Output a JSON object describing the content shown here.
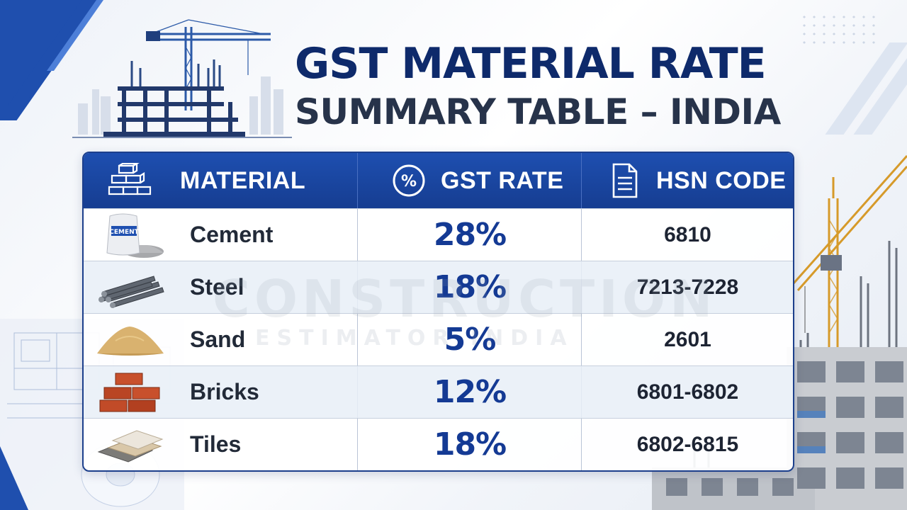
{
  "title": {
    "line1": "GST MATERIAL RATE",
    "line2": "SUMMARY TABLE – INDIA"
  },
  "table": {
    "headers": [
      {
        "label": "MATERIAL",
        "icon": "bricks-stack-icon"
      },
      {
        "label": "GST RATE",
        "icon": "percent-circle-icon"
      },
      {
        "label": "HSN CODE",
        "icon": "document-icon"
      }
    ],
    "rows": [
      {
        "material": "Cement",
        "image": "cement-bag",
        "gst_rate": "28%",
        "hsn_code": "6810"
      },
      {
        "material": "Steel",
        "image": "steel-bars",
        "gst_rate": "18%",
        "hsn_code": "7213-7228"
      },
      {
        "material": "Sand",
        "image": "sand-pile",
        "gst_rate": "5%",
        "hsn_code": "2601"
      },
      {
        "material": "Bricks",
        "image": "bricks",
        "gst_rate": "12%",
        "hsn_code": "6801-6802"
      },
      {
        "material": "Tiles",
        "image": "tiles",
        "gst_rate": "18%",
        "hsn_code": "6802-6815"
      }
    ]
  },
  "cement_bag_label": "CEMENT",
  "watermark": {
    "line1": "CONSTRUCTION",
    "line2": "ESTIMATOR INDIA"
  },
  "colors": {
    "header_blue": "#1e4fb0",
    "title_navy": "#0e2a6b",
    "rate_blue": "#143a94"
  }
}
